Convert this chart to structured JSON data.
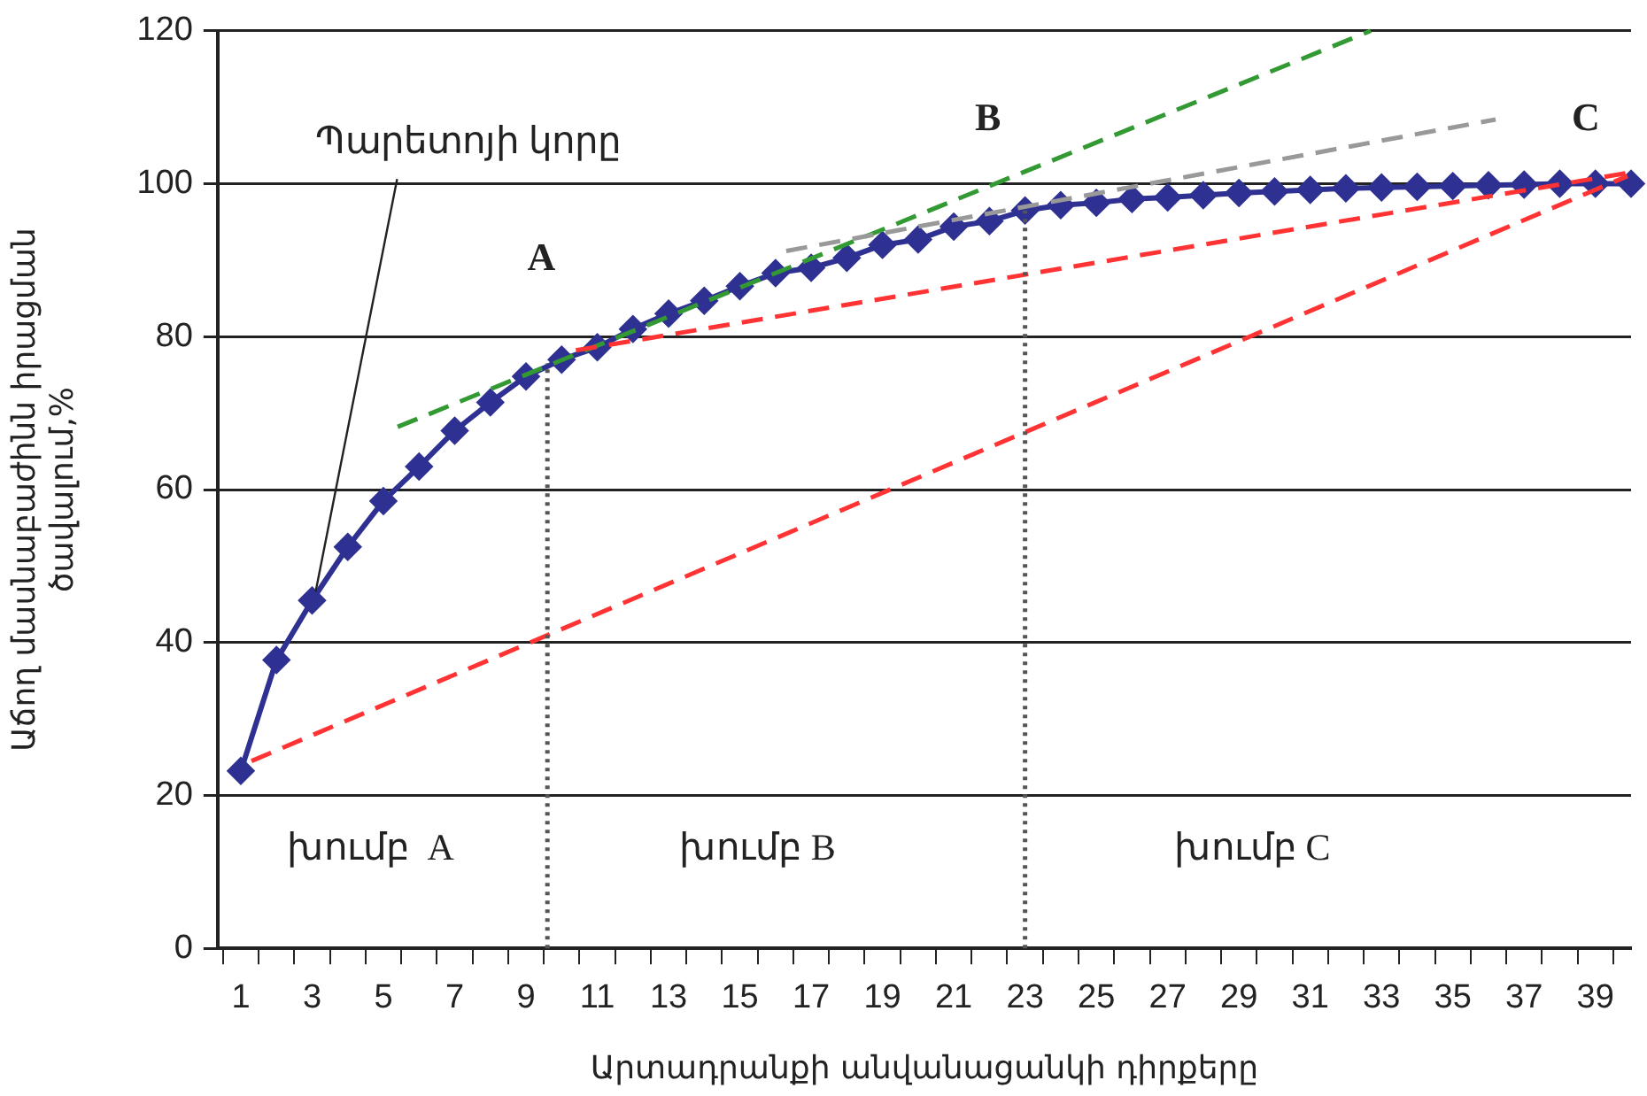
{
  "chart_data": {
    "type": "line",
    "xlabel": "Արտադրանքի անվանացանկի դիրքերը",
    "ylabel": "Աճող մասնաբաժինն իրացման\nծավալում,%",
    "x": [
      1,
      2,
      3,
      4,
      5,
      6,
      7,
      8,
      9,
      10,
      11,
      12,
      13,
      14,
      15,
      16,
      17,
      18,
      19,
      20,
      21,
      22,
      23,
      24,
      25,
      26,
      27,
      28,
      29,
      30,
      31,
      32,
      33,
      34,
      35,
      36,
      37,
      38,
      39,
      40
    ],
    "series": [
      {
        "color": "#2e3192",
        "marker": "diamond",
        "line_style": "solid",
        "values": [
          23.2,
          37.7,
          45.5,
          52.5,
          58.5,
          63,
          67.7,
          71.4,
          74.8,
          77,
          78.6,
          81,
          83,
          84.7,
          86.6,
          88.3,
          89,
          90.3,
          92,
          92.7,
          94.4,
          95.1,
          96.5,
          97.2,
          97.5,
          98,
          98.2,
          98.5,
          98.8,
          99,
          99.2,
          99.4,
          99.5,
          99.6,
          99.7,
          99.8,
          99.9,
          100,
          100,
          100
        ]
      },
      {
        "type": "line",
        "x": [
          5.4,
          32.7
        ],
        "color": "#339933",
        "marker": "none",
        "line_style": "dashed",
        "values": [
          68.2,
          120
        ]
      },
      {
        "type": "line",
        "x": [
          16.3,
          36.2
        ],
        "color": "#999999",
        "marker": "none",
        "line_style": "dashed",
        "values": [
          91.2,
          108.4
        ]
      },
      {
        "type": "line",
        "x": [
          10.4,
          39.9
        ],
        "color": "#ff3333",
        "marker": "none",
        "line_style": "dashed",
        "values": [
          78.2,
          101.4
        ]
      },
      {
        "type": "line",
        "x": [
          1.3,
          39.9
        ],
        "color": "#ff3333",
        "marker": "none",
        "line_style": "dashed",
        "values": [
          24.5,
          101
        ]
      },
      {
        "type": "line",
        "x": [
          9.6,
          9.6
        ],
        "color": "#555555",
        "marker": "none",
        "line_style": "dotted",
        "values": [
          0,
          76.5
        ]
      },
      {
        "type": "line",
        "x": [
          23,
          23
        ],
        "color": "#555555",
        "marker": "none",
        "line_style": "dotted",
        "values": [
          0,
          96.5
        ]
      }
    ],
    "xlim": [
      0.35,
      40
    ],
    "xticks": [
      {
        "value": 0.5,
        "label": null
      },
      1,
      {
        "value": 1.5,
        "label": null
      },
      {
        "value": 2.5,
        "label": null
      },
      3,
      {
        "value": 3.5,
        "label": null
      },
      {
        "value": 4.5,
        "label": null
      },
      5,
      {
        "value": 5.5,
        "label": null
      },
      {
        "value": 6.5,
        "label": null
      },
      7,
      {
        "value": 7.5,
        "label": null
      },
      {
        "value": 8.5,
        "label": null
      },
      9,
      {
        "value": 9.5,
        "label": null
      },
      {
        "value": 10.5,
        "label": null
      },
      11,
      {
        "value": 11.5,
        "label": null
      },
      {
        "value": 12.5,
        "label": null
      },
      13,
      {
        "value": 13.5,
        "label": null
      },
      {
        "value": 14.5,
        "label": null
      },
      15,
      {
        "value": 15.5,
        "label": null
      },
      {
        "value": 16.5,
        "label": null
      },
      17,
      {
        "value": 17.5,
        "label": null
      },
      {
        "value": 18.5,
        "label": null
      },
      19,
      {
        "value": 19.5,
        "label": null
      },
      {
        "value": 20.5,
        "label": null
      },
      21,
      {
        "value": 21.5,
        "label": null
      },
      {
        "value": 22.5,
        "label": null
      },
      23,
      {
        "value": 23.5,
        "label": null
      },
      {
        "value": 24.5,
        "label": null
      },
      25,
      {
        "value": 25.5,
        "label": null
      },
      {
        "value": 26.5,
        "label": null
      },
      27,
      {
        "value": 27.5,
        "label": null
      },
      {
        "value": 28.5,
        "label": null
      },
      29,
      {
        "value": 29.5,
        "label": null
      },
      {
        "value": 30.5,
        "label": null
      },
      31,
      {
        "value": 31.5,
        "label": null
      },
      {
        "value": 32.5,
        "label": null
      },
      33,
      {
        "value": 33.5,
        "label": null
      },
      {
        "value": 34.5,
        "label": null
      },
      35,
      {
        "value": 35.5,
        "label": null
      },
      {
        "value": 36.5,
        "label": null
      },
      37,
      {
        "value": 37.5,
        "label": null
      },
      {
        "value": 38.5,
        "label": null
      },
      39,
      {
        "value": 39.5,
        "label": null
      }
    ],
    "ylim": [
      0,
      120
    ],
    "yticks": [
      0,
      20,
      40,
      60,
      80,
      100,
      120
    ],
    "grid": "y",
    "legend": false,
    "annotations": [
      {
        "text": "Պարետոյի կորը",
        "x": 3,
        "y": 45.5
      },
      "A",
      "B",
      "C",
      "խումբ  A",
      "խումբ B",
      "խումբ C"
    ]
  }
}
